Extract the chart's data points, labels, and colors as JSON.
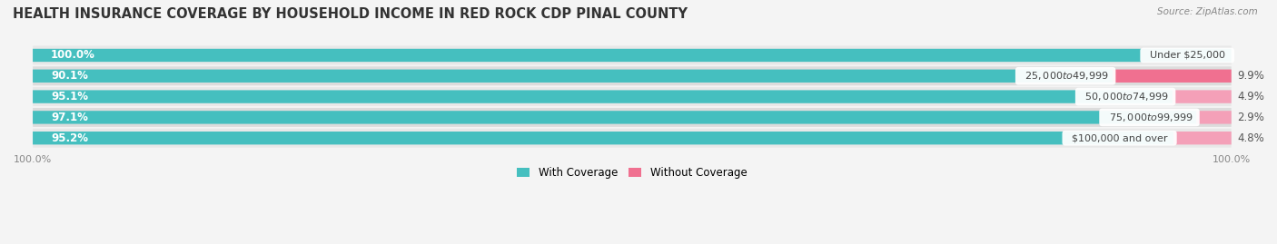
{
  "title": "HEALTH INSURANCE COVERAGE BY HOUSEHOLD INCOME IN RED ROCK CDP PINAL COUNTY",
  "source": "Source: ZipAtlas.com",
  "categories": [
    "Under $25,000",
    "$25,000 to $49,999",
    "$50,000 to $74,999",
    "$75,000 to $99,999",
    "$100,000 and over"
  ],
  "with_coverage": [
    100.0,
    90.1,
    95.1,
    97.1,
    95.2
  ],
  "without_coverage": [
    0.0,
    9.9,
    4.9,
    2.9,
    4.8
  ],
  "color_with": "#45bfbf",
  "color_without": "#f07090",
  "color_without_light": "#f4a0b8",
  "bg_row_even": "#ebebeb",
  "bg_row_odd": "#e0e0e0",
  "bg_color": "#f4f4f4",
  "title_fontsize": 10.5,
  "label_fontsize": 8.5,
  "tick_fontsize": 8,
  "bar_height": 0.62,
  "xlim_max": 100
}
